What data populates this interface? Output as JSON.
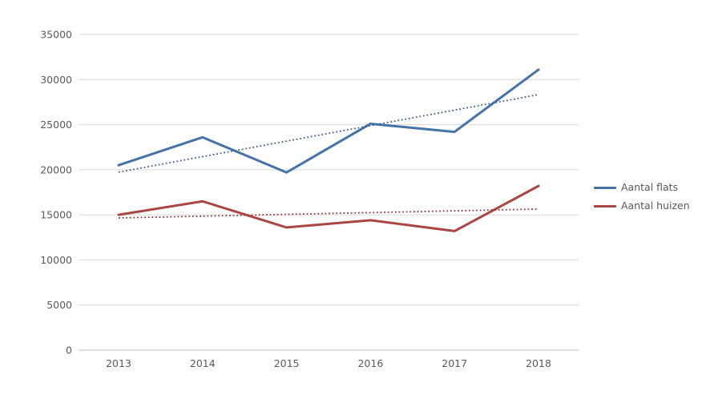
{
  "chart_data": {
    "type": "line",
    "x": [
      2013,
      2014,
      2015,
      2016,
      2017,
      2018
    ],
    "series": [
      {
        "name": "Aantal flats",
        "color": "#4572A7",
        "values": [
          20500,
          23600,
          19700,
          25100,
          24200,
          31100
        ],
        "trendline": {
          "style": "dotted",
          "color": "#3B5F8F",
          "start": 19733,
          "end": 28333
        }
      },
      {
        "name": "Aantal huizen",
        "color": "#AA4643",
        "values": [
          15000,
          16500,
          13600,
          14400,
          13200,
          18200
        ],
        "trendline": {
          "style": "dotted",
          "color": "#943734",
          "start": 14658,
          "end": 15642
        }
      }
    ],
    "title": "",
    "xlabel": "",
    "ylabel": "",
    "ylim": [
      0,
      35000
    ],
    "ytick_step": 5000,
    "grid": "horizontal",
    "legend_position": "right"
  },
  "axes": {
    "y_ticks": [
      "0",
      "5000",
      "10000",
      "15000",
      "20000",
      "25000",
      "30000",
      "35000"
    ],
    "x_ticks": [
      "2013",
      "2014",
      "2015",
      "2016",
      "2017",
      "2018"
    ]
  },
  "style": {
    "gridline_color": "#D8D8D8",
    "baseline_color": "#BFBFBF",
    "tick_label_color": "#595959",
    "background": "#FFFFFF"
  }
}
